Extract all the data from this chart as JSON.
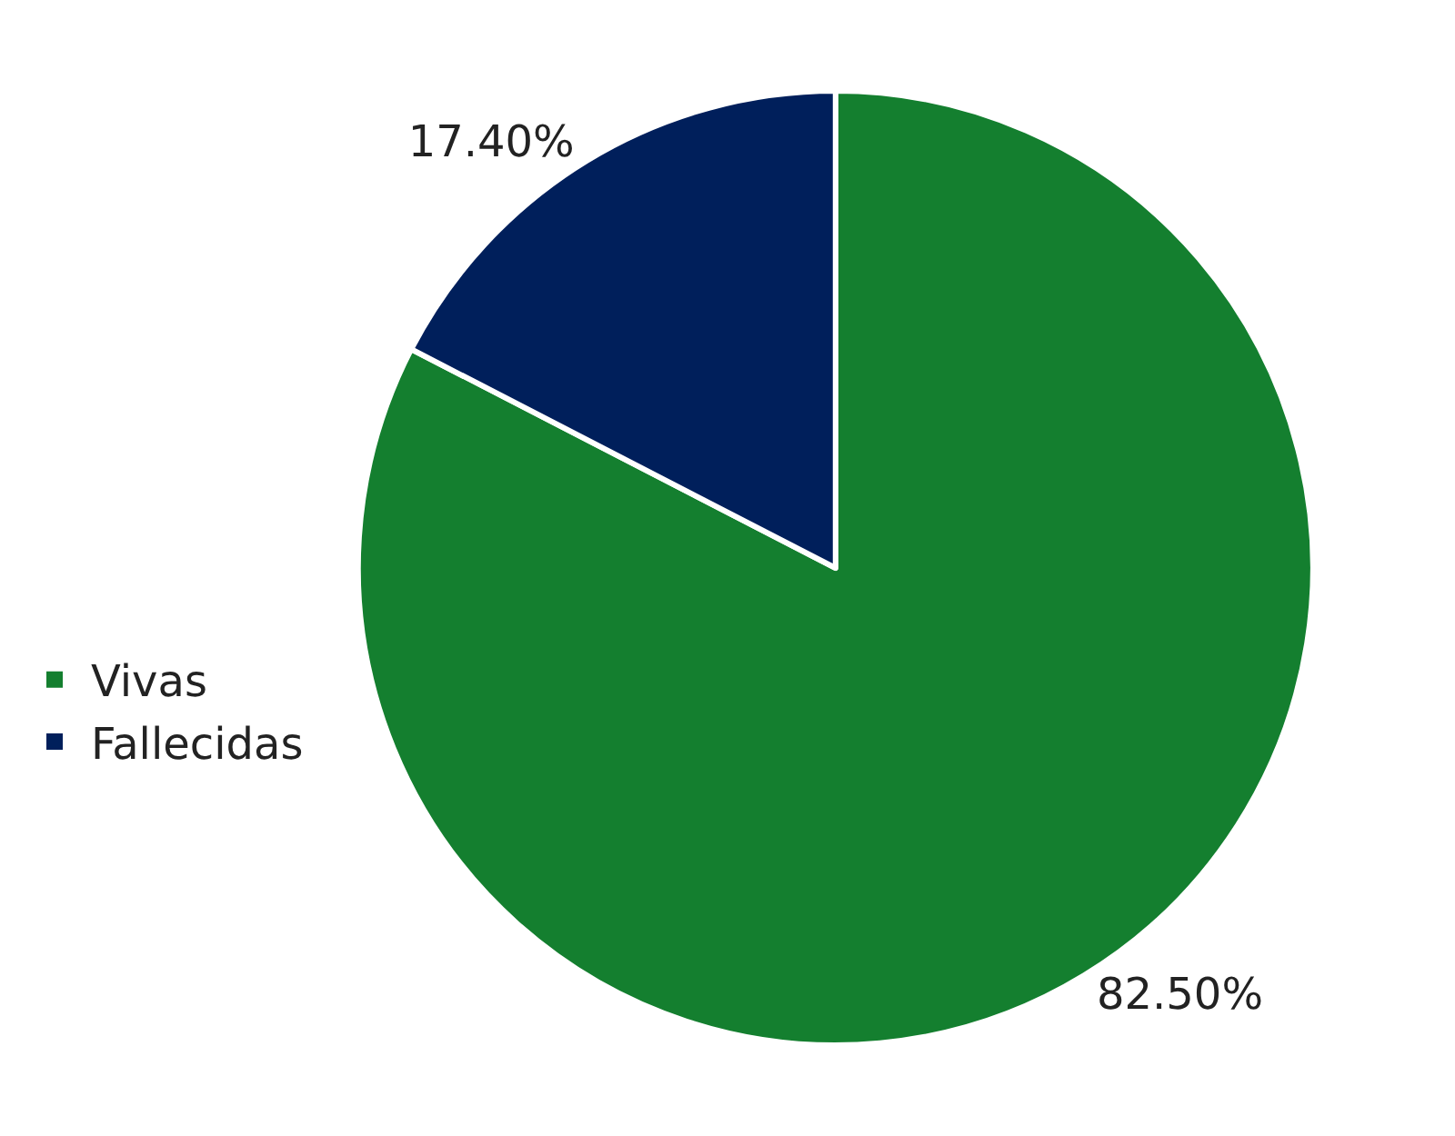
{
  "chart_data": {
    "type": "pie",
    "categories": [
      "Vivas",
      "Fallecidas"
    ],
    "values": [
      82.5,
      17.4
    ],
    "value_labels": [
      "82.50%",
      "17.40%"
    ],
    "colors": [
      "#147f2f",
      "#001f5b"
    ],
    "legend": "left"
  }
}
